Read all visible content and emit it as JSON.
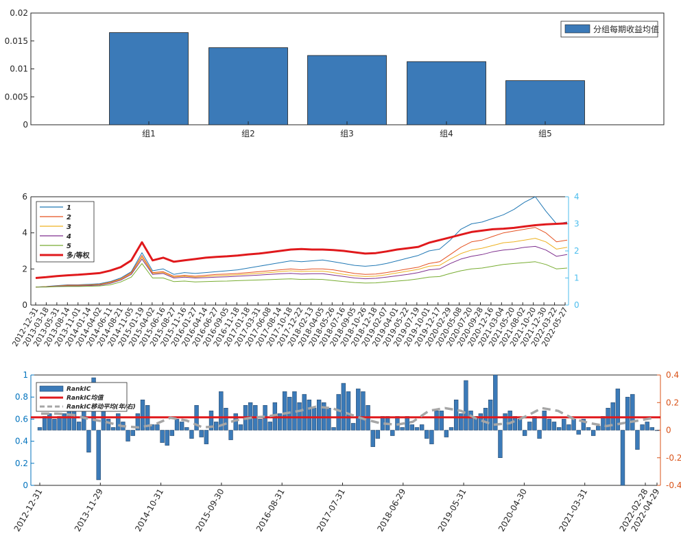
{
  "colors": {
    "bar": "#3b7ab8",
    "bar_edge": "#1f1f1f",
    "series": [
      "#1f77b4",
      "#e5501f",
      "#edb120",
      "#7e2f8e",
      "#77ac30"
    ],
    "long_short": "#e0191c",
    "right_axis_mid": "#4dbeee",
    "right_axis_bottom": "#d95319",
    "left_axis_bottom": "#0072bd",
    "ma": "#a6a6a6"
  },
  "chart_data": [
    {
      "type": "bar",
      "categories": [
        "组1",
        "组2",
        "组3",
        "组4",
        "组5"
      ],
      "values": [
        0.0165,
        0.0138,
        0.0124,
        0.0113,
        0.0079
      ],
      "ylim": [
        0,
        0.02
      ],
      "yticks": [
        "0",
        "0.005",
        "0.01",
        "0.015",
        "0.02"
      ],
      "legend": [
        "分组每期收益均值"
      ],
      "legend_position": "top-right"
    },
    {
      "type": "line",
      "xticks": [
        "2012-12-31",
        "2013-03-18",
        "2013-05-31",
        "2013-08-14",
        "2013-11-01",
        "2014-01-14",
        "2014-04-02",
        "2014-06-11",
        "2014-08-21",
        "2014-11-05",
        "2015-01-19",
        "2015-04-02",
        "2015-06-16",
        "2015-08-27",
        "2015-11-16",
        "2016-01-27",
        "2016-04-14",
        "2016-06-27",
        "2016-09-05",
        "2016-11-18",
        "2017-01-18",
        "2017-03-31",
        "2017-06-08",
        "2017-08-14",
        "2017-10-18",
        "2017-12-22",
        "2018-02-13",
        "2018-04-05",
        "2018-05-26",
        "2018-07-16",
        "2018-09-05",
        "2018-10-26",
        "2018-12-18",
        "2019-02-07",
        "2019-04-01",
        "2019-05-22",
        "2019-07-19",
        "2019-10-01",
        "2019-12-17",
        "2020-02-29",
        "2020-05-08",
        "2020-07-20",
        "2020-09-28",
        "2020-12-16",
        "2021-03-04",
        "2021-05-20",
        "2021-08-02",
        "2021-10-20",
        "2021-12-30",
        "2022-03-22",
        "2022-05-27"
      ],
      "ylim_left": [
        0,
        6
      ],
      "yticks_left": [
        "0",
        "2",
        "4",
        "6"
      ],
      "ylim_right": [
        0,
        4
      ],
      "yticks_right": [
        "0",
        "1",
        "2",
        "3",
        "4"
      ],
      "legend": [
        "1",
        "2",
        "3",
        "4",
        "5",
        "多/等权"
      ],
      "legend_position": "top-left",
      "series": [
        {
          "name": "1",
          "axis": "left",
          "values": [
            1.0,
            1.03,
            1.08,
            1.12,
            1.12,
            1.15,
            1.18,
            1.3,
            1.5,
            1.85,
            2.9,
            1.9,
            2.0,
            1.7,
            1.8,
            1.75,
            1.8,
            1.85,
            1.9,
            1.95,
            2.05,
            2.15,
            2.25,
            2.35,
            2.45,
            2.4,
            2.45,
            2.5,
            2.4,
            2.3,
            2.2,
            2.15,
            2.2,
            2.3,
            2.45,
            2.6,
            2.75,
            3.0,
            3.1,
            3.6,
            4.2,
            4.5,
            4.6,
            4.8,
            5.0,
            5.3,
            5.7,
            6.0,
            5.2,
            4.5,
            4.6
          ]
        },
        {
          "name": "2",
          "axis": "left",
          "values": [
            1.0,
            1.02,
            1.06,
            1.1,
            1.1,
            1.12,
            1.15,
            1.27,
            1.45,
            1.8,
            2.75,
            1.8,
            1.85,
            1.6,
            1.65,
            1.6,
            1.65,
            1.7,
            1.72,
            1.75,
            1.8,
            1.85,
            1.9,
            1.95,
            2.0,
            1.95,
            2.0,
            2.0,
            1.95,
            1.85,
            1.75,
            1.7,
            1.72,
            1.8,
            1.9,
            2.0,
            2.1,
            2.3,
            2.4,
            2.8,
            3.2,
            3.5,
            3.6,
            3.8,
            4.0,
            4.1,
            4.2,
            4.3,
            4.0,
            3.5,
            3.6
          ]
        },
        {
          "name": "3",
          "axis": "left",
          "values": [
            1.0,
            1.02,
            1.05,
            1.08,
            1.08,
            1.1,
            1.13,
            1.24,
            1.42,
            1.75,
            2.65,
            1.75,
            1.8,
            1.55,
            1.6,
            1.55,
            1.58,
            1.62,
            1.65,
            1.68,
            1.72,
            1.76,
            1.8,
            1.85,
            1.9,
            1.85,
            1.88,
            1.88,
            1.8,
            1.7,
            1.62,
            1.58,
            1.6,
            1.68,
            1.78,
            1.88,
            1.98,
            2.15,
            2.2,
            2.55,
            2.85,
            3.05,
            3.15,
            3.3,
            3.45,
            3.5,
            3.6,
            3.7,
            3.5,
            3.1,
            3.2
          ]
        },
        {
          "name": "4",
          "axis": "left",
          "values": [
            1.0,
            1.01,
            1.04,
            1.06,
            1.06,
            1.08,
            1.1,
            1.2,
            1.38,
            1.7,
            2.55,
            1.7,
            1.75,
            1.5,
            1.55,
            1.5,
            1.52,
            1.55,
            1.57,
            1.6,
            1.63,
            1.66,
            1.7,
            1.73,
            1.76,
            1.72,
            1.74,
            1.74,
            1.66,
            1.58,
            1.5,
            1.46,
            1.48,
            1.55,
            1.62,
            1.7,
            1.8,
            1.95,
            2.0,
            2.3,
            2.55,
            2.7,
            2.8,
            2.95,
            3.05,
            3.1,
            3.2,
            3.25,
            3.05,
            2.7,
            2.8
          ]
        },
        {
          "name": "5",
          "axis": "left",
          "values": [
            1.0,
            1.0,
            1.02,
            1.03,
            1.03,
            1.04,
            1.06,
            1.12,
            1.28,
            1.55,
            2.3,
            1.5,
            1.5,
            1.3,
            1.33,
            1.28,
            1.3,
            1.32,
            1.33,
            1.35,
            1.37,
            1.39,
            1.41,
            1.43,
            1.45,
            1.42,
            1.43,
            1.42,
            1.36,
            1.3,
            1.25,
            1.22,
            1.23,
            1.28,
            1.33,
            1.38,
            1.45,
            1.55,
            1.58,
            1.75,
            1.9,
            2.0,
            2.05,
            2.15,
            2.25,
            2.3,
            2.35,
            2.4,
            2.25,
            2.0,
            2.05
          ]
        },
        {
          "name": "多/等权",
          "axis": "right",
          "values": [
            1.0,
            1.03,
            1.07,
            1.1,
            1.12,
            1.15,
            1.18,
            1.27,
            1.4,
            1.65,
            2.32,
            1.65,
            1.75,
            1.6,
            1.65,
            1.7,
            1.75,
            1.78,
            1.8,
            1.83,
            1.87,
            1.9,
            1.95,
            2.0,
            2.05,
            2.07,
            2.05,
            2.05,
            2.03,
            2.0,
            1.95,
            1.9,
            1.92,
            1.98,
            2.05,
            2.1,
            2.15,
            2.3,
            2.4,
            2.5,
            2.6,
            2.7,
            2.75,
            2.8,
            2.82,
            2.85,
            2.9,
            2.95,
            2.98,
            3.0,
            3.02
          ]
        }
      ]
    },
    {
      "type": "bar",
      "xticks": [
        "2012-12-31",
        "2013-11-29",
        "2014-10-31",
        "2015-09-30",
        "2016-08-31",
        "2017-07-31",
        "2018-06-29",
        "2019-05-31",
        "2020-04-30",
        "2021-03-31",
        "2022-02-28",
        "2022-04-29"
      ],
      "ylim_left": [
        0,
        1
      ],
      "yticks_left": [
        "0",
        "0.2",
        "0.4",
        "0.6",
        "0.8",
        "1"
      ],
      "ylim_right": [
        -0.4,
        0.4
      ],
      "yticks_right": [
        "-0.4",
        "-0.2",
        "0",
        "0.2",
        "0.4"
      ],
      "legend": [
        "RankIC",
        "RankIC均值",
        "RankIC移动平均(年/右)"
      ],
      "legend_position": "top-left",
      "series": [
        {
          "name": "RankIC",
          "values": [
            0.02,
            0.1,
            0.12,
            0.08,
            0.1,
            0.12,
            0.14,
            0.18,
            0.06,
            0.26,
            -0.16,
            0.38,
            -0.36,
            0.14,
            0.08,
            0.02,
            0.12,
            0.06,
            -0.08,
            -0.04,
            0.12,
            0.22,
            0.18,
            0.04,
            0.04,
            -0.09,
            -0.11,
            -0.04,
            0.08,
            0.06,
            0.02,
            -0.06,
            0.18,
            -0.05,
            -0.1,
            0.14,
            0.06,
            0.28,
            0.16,
            -0.07,
            0.12,
            0.04,
            0.18,
            0.2,
            0.18,
            0.08,
            0.18,
            0.06,
            0.2,
            0.12,
            0.28,
            0.24,
            0.28,
            0.2,
            0.26,
            0.22,
            0.16,
            0.22,
            0.2,
            0.16,
            0.02,
            0.26,
            0.34,
            0.28,
            0.05,
            0.3,
            0.28,
            0.18,
            -0.12,
            -0.06,
            0.1,
            0.1,
            -0.04,
            0.1,
            0.02,
            0.1,
            0.04,
            0.02,
            0.04,
            -0.06,
            -0.1,
            0.14,
            0.14,
            -0.05,
            0.02,
            0.22,
            0.12,
            0.36,
            0.14,
            0.1,
            0.12,
            0.16,
            0.22,
            0.4,
            -0.2,
            0.12,
            0.14,
            0.1,
            0.08,
            -0.04,
            0.06,
            0.1,
            -0.06,
            0.14,
            0.08,
            0.06,
            0.02,
            0.08,
            0.04,
            0.08,
            -0.03,
            0.08,
            0.02,
            -0.04,
            0.03,
            0.1,
            0.16,
            0.2,
            0.3,
            -0.4,
            0.24,
            0.26,
            -0.14,
            0.04,
            0.06,
            0.02,
            0.0
          ]
        },
        {
          "name": "RankIC均值",
          "values": [
            0.093
          ]
        },
        {
          "name": "RankIC移动平均(年/右)",
          "values": [
            0.12,
            0.12,
            0.11,
            0.08,
            0.06,
            0.03,
            0.02,
            0.04,
            0.09,
            0.07,
            0.02,
            0.03,
            0.07,
            0.09,
            0.1,
            0.12,
            0.14,
            0.17,
            0.16,
            0.12,
            0.08,
            0.05,
            0.04,
            0.06,
            0.14,
            0.16,
            0.14,
            0.08,
            0.04,
            0.05,
            0.1,
            0.16,
            0.14,
            0.08,
            0.05,
            0.03,
            0.05,
            0.07,
            0.09
          ]
        }
      ]
    }
  ]
}
